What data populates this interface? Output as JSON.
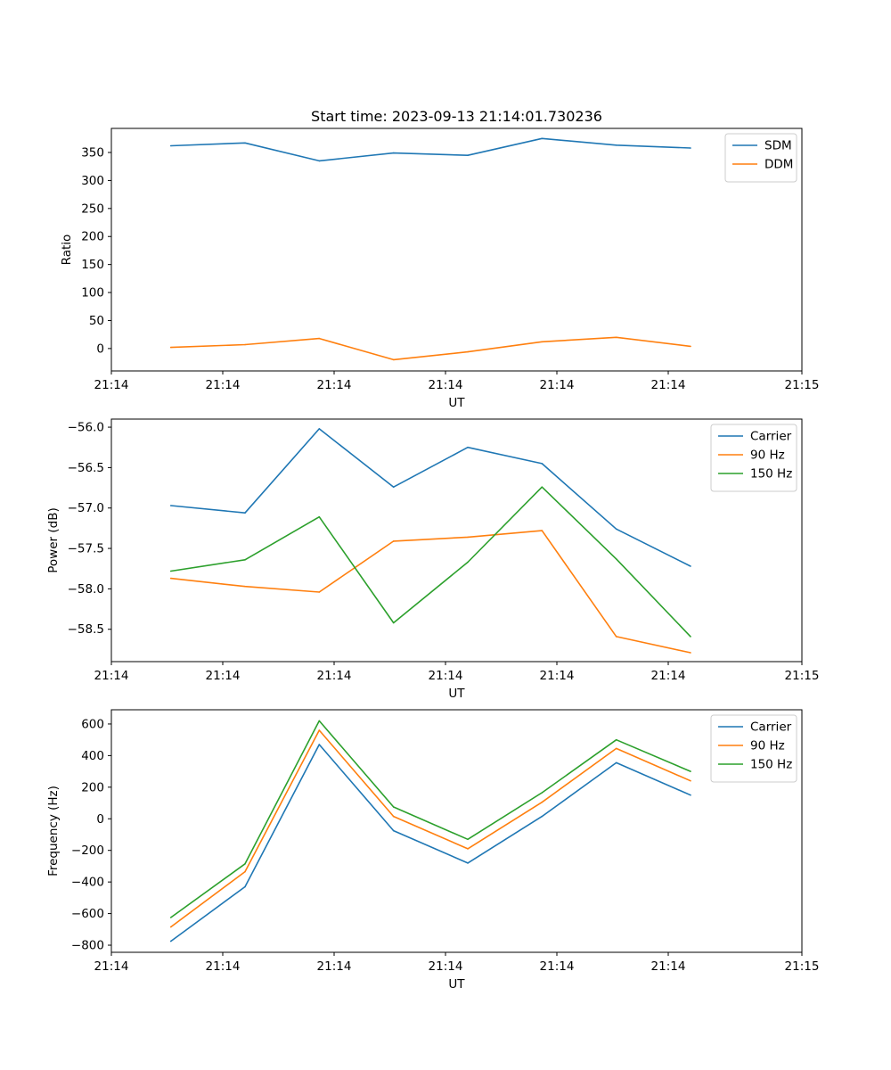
{
  "figure_title": "Start time: 2023-09-13 21:14:01.730236",
  "colors": {
    "blue": "#1f77b4",
    "orange": "#ff7f0e",
    "green": "#2ca02c"
  },
  "chart_data": [
    {
      "type": "line",
      "xlabel": "UT",
      "ylabel": "Ratio",
      "xlim": [
        -0.5,
        8.8
      ],
      "ylim": [
        -40,
        393
      ],
      "x": [
        0.3,
        1.3,
        2.3,
        3.3,
        4.3,
        5.3,
        6.3,
        7.3
      ],
      "xticks": [
        -0.5,
        1.0,
        2.5,
        4.0,
        5.5,
        7.0,
        8.8
      ],
      "xtick_labels": [
        "21:14",
        "21:14",
        "21:14",
        "21:14",
        "21:14",
        "21:14",
        "21:15"
      ],
      "yticks": [
        0,
        50,
        100,
        150,
        200,
        250,
        300,
        350
      ],
      "ytick_labels": [
        "0",
        "50",
        "100",
        "150",
        "200",
        "250",
        "300",
        "350"
      ],
      "legend_position": "top-right",
      "series": [
        {
          "name": "SDM",
          "color": "#1f77b4",
          "values": [
            362,
            367,
            335,
            349,
            345,
            375,
            363,
            358
          ]
        },
        {
          "name": "DDM",
          "color": "#ff7f0e",
          "values": [
            2,
            7,
            18,
            -20,
            -6,
            12,
            20,
            4
          ]
        }
      ]
    },
    {
      "type": "line",
      "xlabel": "UT",
      "ylabel": "Power (dB)",
      "xlim": [
        -0.5,
        8.8
      ],
      "ylim": [
        -58.9,
        -55.9
      ],
      "x": [
        0.3,
        1.3,
        2.3,
        3.3,
        4.3,
        5.3,
        6.3,
        7.3
      ],
      "xticks": [
        -0.5,
        1.0,
        2.5,
        4.0,
        5.5,
        7.0,
        8.8
      ],
      "xtick_labels": [
        "21:14",
        "21:14",
        "21:14",
        "21:14",
        "21:14",
        "21:14",
        "21:15"
      ],
      "yticks": [
        -58.5,
        -58.0,
        -57.5,
        -57.0,
        -56.5,
        -56.0
      ],
      "ytick_labels": [
        "−58.5",
        "−58.0",
        "−57.5",
        "−57.0",
        "−56.5",
        "−56.0"
      ],
      "legend_position": "top-right",
      "series": [
        {
          "name": "Carrier",
          "color": "#1f77b4",
          "values": [
            -56.97,
            -57.06,
            -56.02,
            -56.74,
            -56.25,
            -56.45,
            -57.26,
            -57.72
          ]
        },
        {
          "name": "90 Hz",
          "color": "#ff7f0e",
          "values": [
            -57.87,
            -57.97,
            -58.04,
            -57.41,
            -57.36,
            -57.28,
            -58.59,
            -58.79
          ]
        },
        {
          "name": "150 Hz",
          "color": "#2ca02c",
          "values": [
            -57.78,
            -57.64,
            -57.11,
            -58.42,
            -57.67,
            -56.74,
            -57.63,
            -58.59
          ]
        }
      ]
    },
    {
      "type": "line",
      "xlabel": "UT",
      "ylabel": "Frequency (Hz)",
      "xlim": [
        -0.5,
        8.8
      ],
      "ylim": [
        -845,
        690
      ],
      "x": [
        0.3,
        1.3,
        2.3,
        3.3,
        4.3,
        5.3,
        6.3,
        7.3
      ],
      "xticks": [
        -0.5,
        1.0,
        2.5,
        4.0,
        5.5,
        7.0,
        8.8
      ],
      "xtick_labels": [
        "21:14",
        "21:14",
        "21:14",
        "21:14",
        "21:14",
        "21:14",
        "21:15"
      ],
      "yticks": [
        -800,
        -600,
        -400,
        -200,
        0,
        200,
        400,
        600
      ],
      "ytick_labels": [
        "−800",
        "−600",
        "−400",
        "−200",
        "0",
        "200",
        "400",
        "600"
      ],
      "legend_position": "top-right",
      "series": [
        {
          "name": "Carrier",
          "color": "#1f77b4",
          "values": [
            -775,
            -430,
            470,
            -75,
            -280,
            15,
            355,
            150
          ]
        },
        {
          "name": "90 Hz",
          "color": "#ff7f0e",
          "values": [
            -685,
            -335,
            560,
            15,
            -190,
            105,
            445,
            240
          ]
        },
        {
          "name": "150 Hz",
          "color": "#2ca02c",
          "values": [
            -625,
            -285,
            620,
            75,
            -130,
            165,
            500,
            300
          ]
        }
      ]
    }
  ]
}
